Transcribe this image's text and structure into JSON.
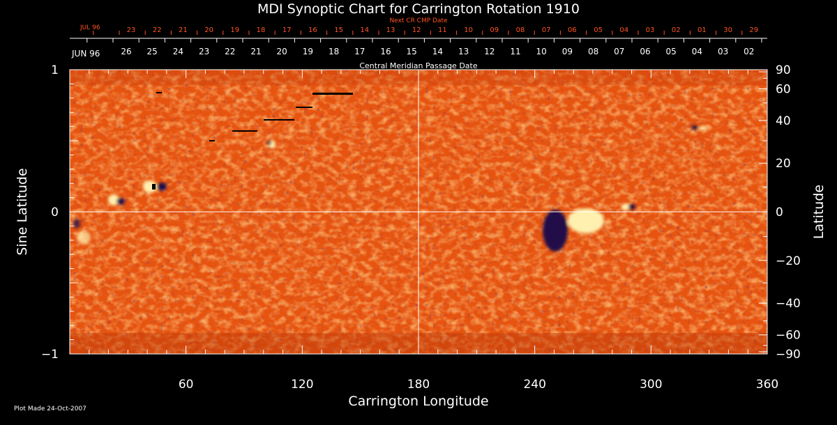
{
  "chart_data": {
    "type": "heatmap",
    "title": "MDI Synoptic Chart for Carrington Rotation 1910",
    "xlabel": "Carrington Longitude",
    "ylabel_left": "Sine Latitude",
    "ylabel_right": "Latitude",
    "xlim": [
      0,
      360
    ],
    "ylim": [
      -1,
      1
    ],
    "x_ticks": [
      60,
      120,
      180,
      240,
      300,
      360
    ],
    "y_left_ticks": [
      {
        "value": 1,
        "label": "1"
      },
      {
        "value": 0,
        "label": "0"
      },
      {
        "value": -1,
        "label": "−1"
      }
    ],
    "y_right_ticks": [
      {
        "value": 90,
        "label": "90"
      },
      {
        "value": 60,
        "label": "60"
      },
      {
        "value": 40,
        "label": "40"
      },
      {
        "value": 20,
        "label": "20"
      },
      {
        "value": 0,
        "label": "0"
      },
      {
        "value": -20,
        "label": "−20"
      },
      {
        "value": -40,
        "label": "−40"
      },
      {
        "value": -60,
        "label": "−60"
      },
      {
        "value": -90,
        "label": "−90"
      }
    ],
    "cmp_axis": {
      "label": "Central Meridian Passage Date",
      "month_label": "JUN 96",
      "days": [
        "26",
        "25",
        "24",
        "23",
        "22",
        "21",
        "20",
        "19",
        "18",
        "17",
        "16",
        "15",
        "14",
        "13",
        "12",
        "11",
        "10",
        "09",
        "08",
        "07",
        "06",
        "05",
        "04",
        "03",
        "02"
      ]
    },
    "next_cr_axis": {
      "label": "Next CR CMP Date",
      "month_label": "JUL 96",
      "days": [
        "23",
        "22",
        "21",
        "20",
        "19",
        "18",
        "17",
        "16",
        "15",
        "14",
        "13",
        "12",
        "11",
        "10",
        "09",
        "08",
        "07",
        "06",
        "05",
        "04",
        "03",
        "02",
        "01",
        "30",
        "29"
      ]
    },
    "footer": "Plot Made 24-Oct-2007",
    "colors": {
      "background": "#000000",
      "axis": "#ffffff",
      "next_cr": "#ff5522",
      "field_base": "#e65410",
      "positive": "#fff0b0",
      "negative": "#24104a"
    },
    "grid_lines": {
      "vertical_at": 180,
      "horizontal_at": 0
    }
  }
}
